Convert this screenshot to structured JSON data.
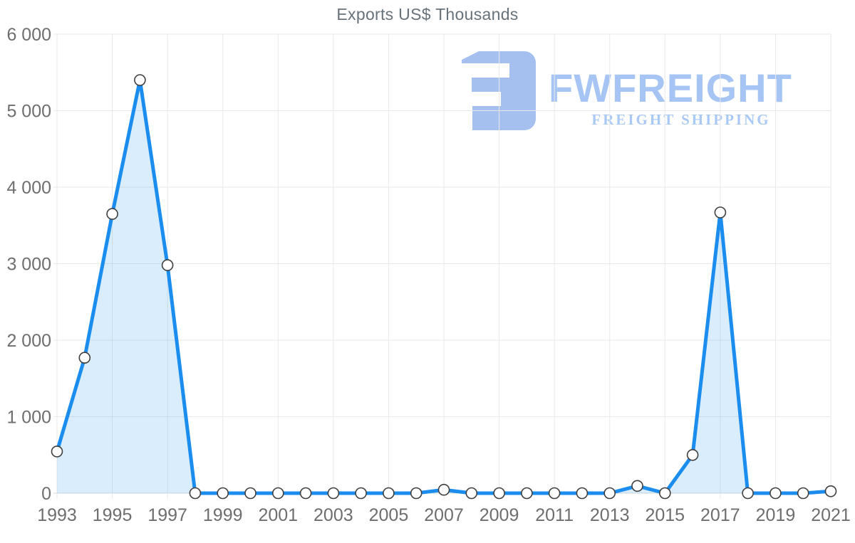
{
  "page": {
    "background": "#ffffff"
  },
  "chart_data": {
    "type": "area",
    "title": "Exports US$ Thousands",
    "xlabel": "",
    "ylabel": "",
    "x": [
      1993,
      1994,
      1995,
      1996,
      1997,
      1998,
      1999,
      2000,
      2001,
      2002,
      2003,
      2004,
      2005,
      2006,
      2007,
      2008,
      2009,
      2010,
      2011,
      2012,
      2013,
      2014,
      2015,
      2016,
      2017,
      2018,
      2019,
      2020,
      2021
    ],
    "series": [
      {
        "name": "Exports US$ Thousands",
        "values": [
          545,
          1770,
          3650,
          5400,
          2980,
          0,
          0,
          0,
          0,
          0,
          0,
          0,
          0,
          0,
          45,
          0,
          0,
          0,
          0,
          0,
          0,
          95,
          0,
          500,
          3670,
          0,
          0,
          0,
          25
        ]
      }
    ],
    "ylim": [
      0,
      6000
    ],
    "y_ticks": [
      0,
      1000,
      2000,
      3000,
      4000,
      5000,
      6000
    ],
    "y_tick_labels": [
      "0",
      "1 000",
      "2 000",
      "3 000",
      "4 000",
      "5 000",
      "6 000"
    ],
    "x_ticks": [
      1993,
      1995,
      1997,
      1999,
      2001,
      2003,
      2005,
      2007,
      2009,
      2011,
      2013,
      2015,
      2017,
      2019,
      2021
    ],
    "x_tick_labels": [
      "1993",
      "1995",
      "1997",
      "1999",
      "2001",
      "2003",
      "2005",
      "2007",
      "2009",
      "2011",
      "2013",
      "2015",
      "2017",
      "2019",
      "2021"
    ],
    "grid": true,
    "legend": "none",
    "line_color": "#1b8def",
    "fill_color": "rgba(27,141,239,0.16)",
    "marker_fill": "#ffffff",
    "marker_stroke": "#3f3f3f",
    "grid_color": "#e9e9e9",
    "baseline_color": "#d9d9d9",
    "label_color": "#6e6e6e",
    "title_color": "#68727a"
  },
  "watermark": {
    "brand": "FWFREIGHT",
    "tagline": "FREIGHT SHIPPING",
    "icon": "fw-freight-logo-icon",
    "brand_color": "#a6c5f4",
    "tagline_color": "#a9c9f6",
    "icon_color": "#a5c0ee"
  }
}
